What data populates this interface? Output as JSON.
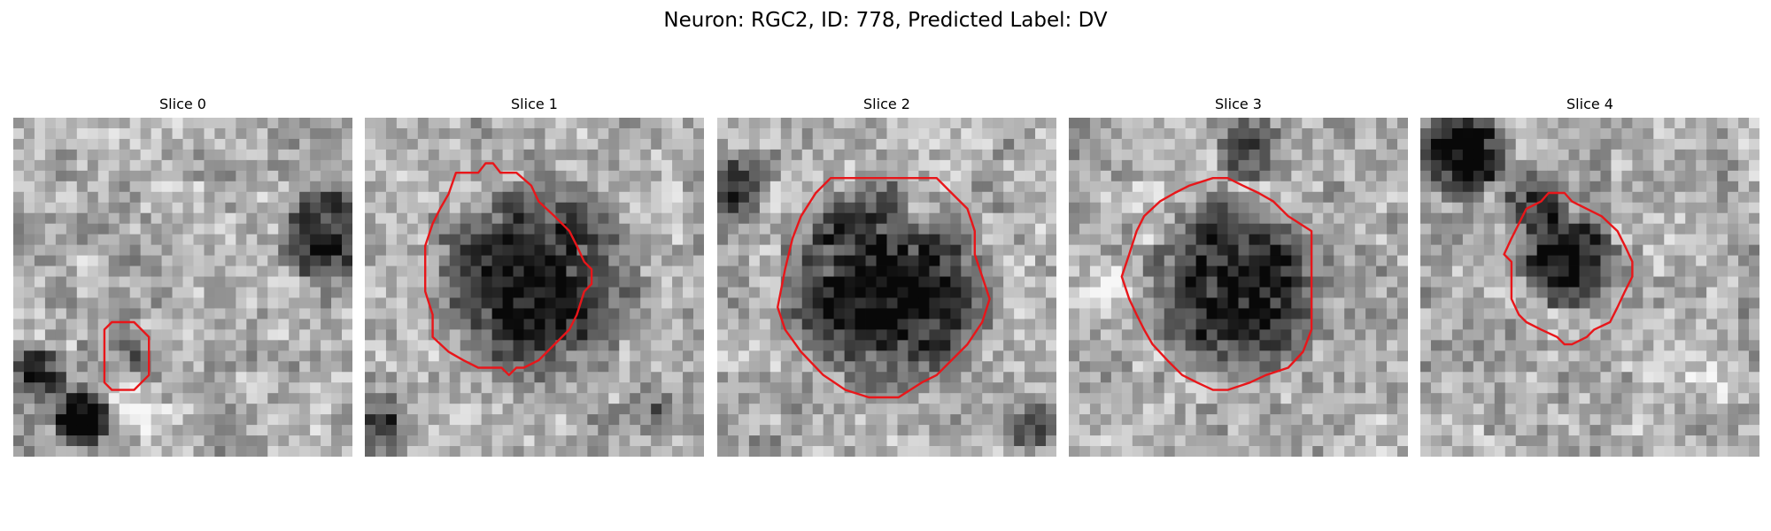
{
  "figure": {
    "title": "Neuron: RGC2, ID: 778, Predicted Label: DV"
  },
  "panels": [
    {
      "title": "Slice 0",
      "image": "grayscale-tissue-patch",
      "contour_color": "#e8161a"
    },
    {
      "title": "Slice 1",
      "image": "grayscale-tissue-patch",
      "contour_color": "#e8161a"
    },
    {
      "title": "Slice 2",
      "image": "grayscale-tissue-patch",
      "contour_color": "#e8161a"
    },
    {
      "title": "Slice 3",
      "image": "grayscale-tissue-patch",
      "contour_color": "#e8161a"
    },
    {
      "title": "Slice 4",
      "image": "grayscale-tissue-patch",
      "contour_color": "#e8161a"
    }
  ]
}
